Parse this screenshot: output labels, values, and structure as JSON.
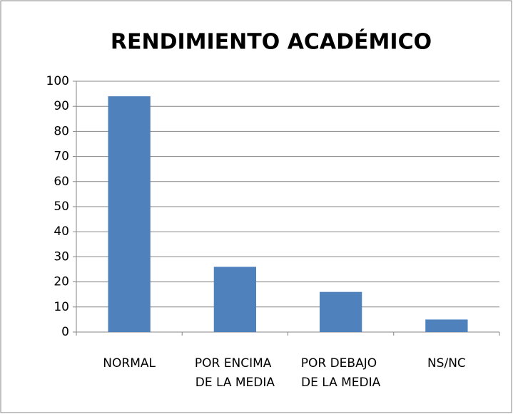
{
  "chart_data": {
    "type": "bar",
    "title": "RENDIMIENTO ACADÉMICO",
    "categories": [
      "NORMAL",
      "POR ENCIMA DE LA MEDIA",
      "POR DEBAJO DE LA MEDIA",
      "NS/NC"
    ],
    "values": [
      94,
      26,
      16,
      5
    ],
    "color": "#4f81bd",
    "ylim": [
      0,
      100
    ],
    "yticks": [
      0,
      10,
      20,
      30,
      40,
      50,
      60,
      70,
      80,
      90,
      100
    ],
    "grid": true
  }
}
